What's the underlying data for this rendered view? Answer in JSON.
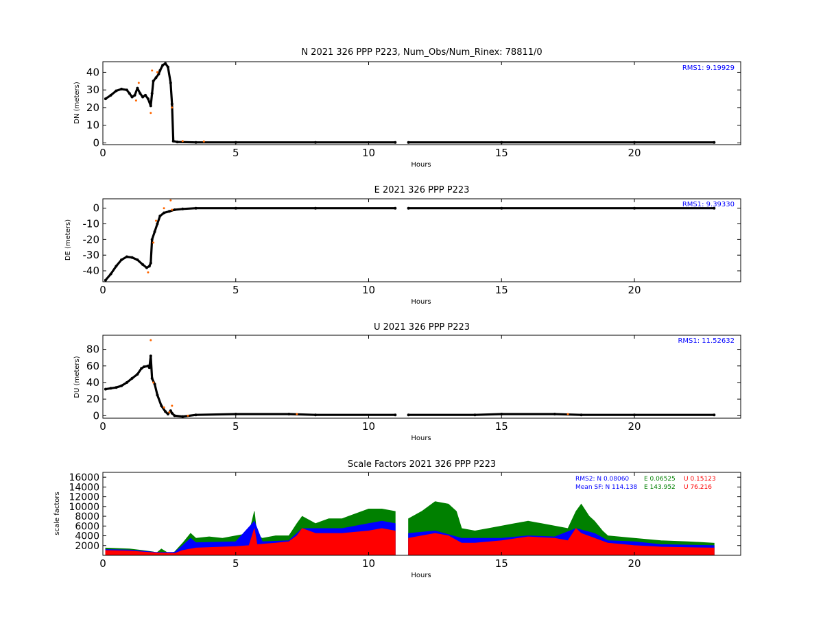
{
  "chart_data": [
    {
      "type": "scatter",
      "title": "N 2021 326 PPP  P223, Num_Obs/Num_Rinex: 78811/0",
      "xlabel": "Hours",
      "ylabel": "DN (meters)",
      "xlim": [
        0,
        24
      ],
      "ylim": [
        -1,
        46
      ],
      "xticks": [
        0,
        5,
        10,
        15,
        20
      ],
      "yticks": [
        0,
        10,
        20,
        30,
        40
      ],
      "annotations": [
        {
          "text": "RMS1:  9.19929",
          "color": "#0000ff",
          "position": "top-right"
        }
      ],
      "series": [
        {
          "color": "#000000",
          "points": [
            [
              0.1,
              25
            ],
            [
              0.3,
              27
            ],
            [
              0.5,
              29.5
            ],
            [
              0.7,
              30.5
            ],
            [
              0.9,
              30
            ],
            [
              1.0,
              28
            ],
            [
              1.1,
              26
            ],
            [
              1.2,
              27
            ],
            [
              1.3,
              31
            ],
            [
              1.4,
              28
            ],
            [
              1.5,
              26
            ],
            [
              1.6,
              27
            ],
            [
              1.7,
              25
            ],
            [
              1.8,
              21
            ],
            [
              1.85,
              28
            ],
            [
              1.9,
              35
            ],
            [
              2.0,
              37
            ],
            [
              2.1,
              39
            ],
            [
              2.15,
              41
            ],
            [
              2.25,
              44
            ],
            [
              2.35,
              45
            ],
            [
              2.45,
              43
            ],
            [
              2.55,
              34
            ],
            [
              2.6,
              22
            ],
            [
              2.65,
              1
            ],
            [
              2.8,
              0.5
            ],
            [
              3.5,
              0.3
            ],
            [
              5,
              0.3
            ],
            [
              8,
              0.3
            ],
            [
              11,
              0.3
            ],
            [
              null,
              null
            ],
            [
              11.5,
              0.3
            ],
            [
              15,
              0.3
            ],
            [
              20,
              0.3
            ],
            [
              23,
              0.3
            ]
          ]
        },
        {
          "color": "#ff6600",
          "points": [
            [
              1.25,
              24
            ],
            [
              1.35,
              34
            ],
            [
              1.8,
              17
            ],
            [
              1.85,
              41
            ],
            [
              2.05,
              40
            ],
            [
              2.6,
              20
            ],
            [
              3.0,
              1
            ],
            [
              3.8,
              0.8
            ]
          ]
        }
      ]
    },
    {
      "type": "scatter",
      "title": "E 2021 326 PPP  P223",
      "xlabel": "Hours",
      "ylabel": "DE (meters)",
      "xlim": [
        0,
        24
      ],
      "ylim": [
        -47,
        6
      ],
      "xticks": [
        0,
        5,
        10,
        15,
        20
      ],
      "yticks": [
        -40,
        -30,
        -20,
        -10,
        0
      ],
      "annotations": [
        {
          "text": "RMS1:  9.39330",
          "color": "#0000ff",
          "position": "top-right"
        }
      ],
      "series": [
        {
          "color": "#000000",
          "points": [
            [
              0.1,
              -46
            ],
            [
              0.3,
              -42
            ],
            [
              0.5,
              -37
            ],
            [
              0.7,
              -33
            ],
            [
              0.9,
              -31
            ],
            [
              1.1,
              -31.5
            ],
            [
              1.3,
              -33
            ],
            [
              1.5,
              -36
            ],
            [
              1.65,
              -38
            ],
            [
              1.75,
              -37
            ],
            [
              1.8,
              -35
            ],
            [
              1.85,
              -20
            ],
            [
              1.95,
              -15
            ],
            [
              2.05,
              -10
            ],
            [
              2.15,
              -5
            ],
            [
              2.3,
              -3
            ],
            [
              2.5,
              -2
            ],
            [
              2.7,
              -1
            ],
            [
              3.0,
              -0.5
            ],
            [
              3.5,
              0
            ],
            [
              5,
              0
            ],
            [
              8,
              0
            ],
            [
              11,
              0
            ],
            [
              null,
              null
            ],
            [
              11.5,
              0
            ],
            [
              15,
              0
            ],
            [
              20,
              0
            ],
            [
              23,
              0
            ]
          ]
        },
        {
          "color": "#ff6600",
          "points": [
            [
              1.7,
              -41
            ],
            [
              1.9,
              -22
            ],
            [
              2.0,
              -8
            ],
            [
              2.3,
              0
            ],
            [
              2.55,
              5
            ],
            [
              2.6,
              -1
            ]
          ]
        }
      ]
    },
    {
      "type": "scatter",
      "title": "U 2021 326 PPP  P223",
      "xlabel": "Hours",
      "ylabel": "DU (meters)",
      "xlim": [
        0,
        24
      ],
      "ylim": [
        -3,
        97
      ],
      "xticks": [
        0,
        5,
        10,
        15,
        20
      ],
      "yticks": [
        0,
        20,
        40,
        60,
        80
      ],
      "annotations": [
        {
          "text": "RMS1: 11.52632",
          "color": "#0000ff",
          "position": "top-right"
        }
      ],
      "series": [
        {
          "color": "#000000",
          "points": [
            [
              0.1,
              32
            ],
            [
              0.3,
              33
            ],
            [
              0.5,
              34
            ],
            [
              0.7,
              36
            ],
            [
              0.9,
              40
            ],
            [
              1.1,
              45
            ],
            [
              1.3,
              50
            ],
            [
              1.45,
              57
            ],
            [
              1.55,
              59
            ],
            [
              1.7,
              60
            ],
            [
              1.75,
              58
            ],
            [
              1.8,
              72
            ],
            [
              1.85,
              45
            ],
            [
              1.95,
              38
            ],
            [
              2.05,
              25
            ],
            [
              2.2,
              12
            ],
            [
              2.35,
              5
            ],
            [
              2.45,
              2
            ],
            [
              2.55,
              6
            ],
            [
              2.6,
              3
            ],
            [
              2.7,
              0
            ],
            [
              3.0,
              -1
            ],
            [
              3.5,
              1
            ],
            [
              5,
              2
            ],
            [
              7,
              2
            ],
            [
              8,
              1
            ],
            [
              11,
              1
            ],
            [
              null,
              null
            ],
            [
              11.5,
              1
            ],
            [
              14,
              1
            ],
            [
              15,
              2
            ],
            [
              17,
              2
            ],
            [
              18,
              1
            ],
            [
              20,
              1
            ],
            [
              23,
              1
            ]
          ]
        },
        {
          "color": "#ff6600",
          "points": [
            [
              1.8,
              91
            ],
            [
              1.9,
              40
            ],
            [
              2.3,
              10
            ],
            [
              2.5,
              4
            ],
            [
              2.6,
              12
            ],
            [
              3.2,
              0
            ],
            [
              7.3,
              2
            ],
            [
              17.5,
              2
            ]
          ]
        }
      ]
    },
    {
      "type": "scatter",
      "title": "Scale Factors 2021 326 PPP  P223",
      "xlabel": "Hours",
      "ylabel": "scale factors",
      "xlim": [
        0,
        24
      ],
      "ylim": [
        0,
        17000
      ],
      "xticks": [
        0,
        5,
        10,
        15,
        20
      ],
      "yticks": [
        2000,
        4000,
        6000,
        8000,
        10000,
        12000,
        14000,
        16000
      ],
      "stats": {
        "rms2": {
          "label": "RMS2: N  0.08060",
          "e": "E  0.06525",
          "u": "U  0.15123"
        },
        "mean_sf": {
          "label": "Mean SF: N 114.138",
          "e": "E 143.952",
          "u": "U  76.216"
        },
        "colors": {
          "n": "#0000ff",
          "e": "#008000",
          "u": "#ff0000"
        }
      },
      "series": [
        {
          "name": "E",
          "color": "#008000",
          "envelope": [
            [
              0.1,
              1500
            ],
            [
              1.0,
              1300
            ],
            [
              1.5,
              1000
            ],
            [
              1.9,
              700
            ],
            [
              2.0,
              400
            ],
            [
              2.2,
              1300
            ],
            [
              2.5,
              300
            ],
            [
              2.7,
              700
            ],
            [
              3.0,
              2500
            ],
            [
              3.3,
              4500
            ],
            [
              3.5,
              3500
            ],
            [
              4.0,
              3800
            ],
            [
              4.5,
              3500
            ],
            [
              5.0,
              4000
            ],
            [
              5.5,
              4500
            ],
            [
              5.7,
              9000
            ],
            [
              5.8,
              4000
            ],
            [
              6.0,
              3500
            ],
            [
              6.5,
              4000
            ],
            [
              7.0,
              4000
            ],
            [
              7.3,
              6500
            ],
            [
              7.5,
              8000
            ],
            [
              8.0,
              6500
            ],
            [
              8.5,
              7500
            ],
            [
              9.0,
              7500
            ],
            [
              9.5,
              8500
            ],
            [
              10.0,
              9500
            ],
            [
              10.5,
              9500
            ],
            [
              11.0,
              9000
            ],
            [
              null,
              null
            ],
            [
              11.5,
              7500
            ],
            [
              12.0,
              9000
            ],
            [
              12.5,
              11000
            ],
            [
              13.0,
              10500
            ],
            [
              13.3,
              9000
            ],
            [
              13.5,
              5500
            ],
            [
              14.0,
              5000
            ],
            [
              14.5,
              5500
            ],
            [
              15.0,
              6000
            ],
            [
              15.5,
              6500
            ],
            [
              16.0,
              7000
            ],
            [
              16.5,
              6500
            ],
            [
              17.0,
              6000
            ],
            [
              17.5,
              5500
            ],
            [
              17.8,
              9000
            ],
            [
              18.0,
              10500
            ],
            [
              18.3,
              8000
            ],
            [
              18.5,
              7000
            ],
            [
              18.8,
              5000
            ],
            [
              19.0,
              4000
            ],
            [
              20.0,
              3500
            ],
            [
              21.0,
              3000
            ],
            [
              22.0,
              2800
            ],
            [
              23.0,
              2500
            ]
          ]
        },
        {
          "name": "N",
          "color": "#0000ff",
          "envelope": [
            [
              0.1,
              1200
            ],
            [
              1.0,
              1100
            ],
            [
              2.0,
              600
            ],
            [
              2.7,
              600
            ],
            [
              3.0,
              2000
            ],
            [
              3.3,
              3500
            ],
            [
              3.5,
              2600
            ],
            [
              5.0,
              2800
            ],
            [
              5.7,
              7000
            ],
            [
              6.0,
              2800
            ],
            [
              7.0,
              3000
            ],
            [
              7.5,
              5500
            ],
            [
              9.0,
              5500
            ],
            [
              10.0,
              6500
            ],
            [
              10.5,
              7000
            ],
            [
              11.0,
              6500
            ],
            [
              null,
              null
            ],
            [
              11.5,
              4500
            ],
            [
              12.5,
              5000
            ],
            [
              13.5,
              3500
            ],
            [
              15.0,
              3500
            ],
            [
              16.0,
              4000
            ],
            [
              17.0,
              3800
            ],
            [
              17.8,
              5500
            ],
            [
              18.5,
              4500
            ],
            [
              19.0,
              3000
            ],
            [
              20.0,
              2800
            ],
            [
              21.0,
              2200
            ],
            [
              23.0,
              2000
            ]
          ]
        },
        {
          "name": "U",
          "color": "#ff0000",
          "envelope": [
            [
              0.1,
              1000
            ],
            [
              1.0,
              900
            ],
            [
              2.0,
              500
            ],
            [
              2.7,
              400
            ],
            [
              3.0,
              1000
            ],
            [
              3.5,
              1500
            ],
            [
              5.0,
              1800
            ],
            [
              5.5,
              2000
            ],
            [
              5.7,
              5500
            ],
            [
              5.8,
              2200
            ],
            [
              6.5,
              2500
            ],
            [
              7.0,
              2800
            ],
            [
              7.3,
              4000
            ],
            [
              7.5,
              5500
            ],
            [
              8.0,
              4500
            ],
            [
              9.0,
              4500
            ],
            [
              10.0,
              5000
            ],
            [
              10.5,
              5500
            ],
            [
              11.0,
              5000
            ],
            [
              null,
              null
            ],
            [
              11.5,
              3500
            ],
            [
              12.0,
              4000
            ],
            [
              12.5,
              4500
            ],
            [
              13.0,
              4000
            ],
            [
              13.5,
              2500
            ],
            [
              14.0,
              2500
            ],
            [
              15.0,
              3000
            ],
            [
              16.0,
              3800
            ],
            [
              17.0,
              3500
            ],
            [
              17.5,
              3000
            ],
            [
              17.8,
              5500
            ],
            [
              18.0,
              4500
            ],
            [
              18.5,
              3500
            ],
            [
              19.0,
              2500
            ],
            [
              20.0,
              2000
            ],
            [
              21.0,
              1700
            ],
            [
              23.0,
              1500
            ]
          ]
        }
      ]
    }
  ]
}
